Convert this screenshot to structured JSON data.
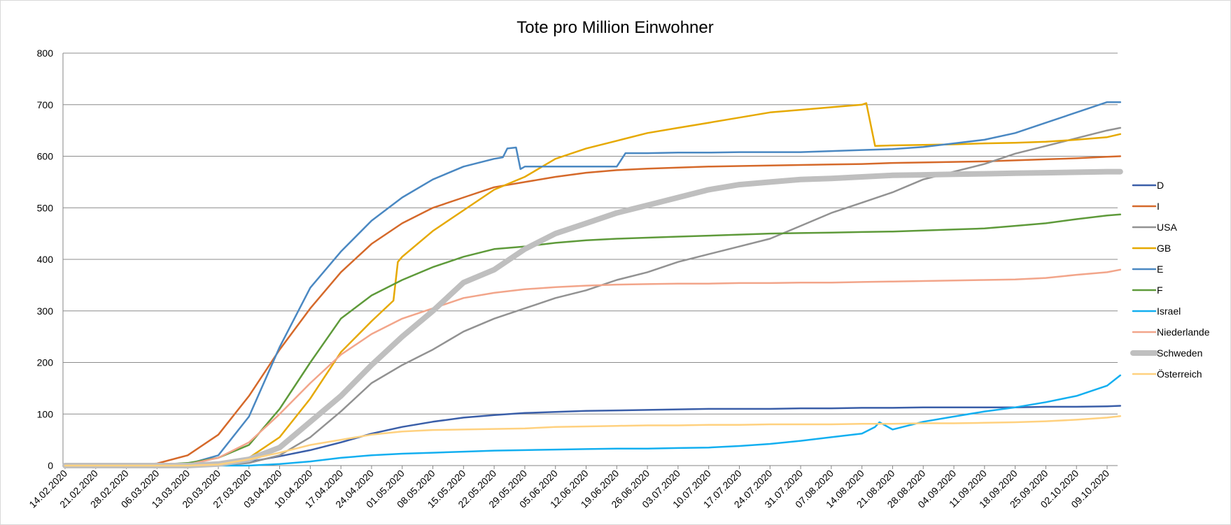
{
  "chart_data": {
    "type": "line",
    "title": "Tote pro Million Einwohner",
    "xlabel": "",
    "ylabel": "",
    "ylim": [
      0,
      800
    ],
    "yticks": [
      0,
      100,
      200,
      300,
      400,
      500,
      600,
      700,
      800
    ],
    "x_unit": "days since 14.02.2020",
    "xlim": [
      0,
      241
    ],
    "xtick_labels": [
      "14.02.2020",
      "21.02.2020",
      "28.02.2020",
      "06.03.2020",
      "13.03.2020",
      "20.03.2020",
      "27.03.2020",
      "03.04.2020",
      "10.04.2020",
      "17.04.2020",
      "24.04.2020",
      "01.05.2020",
      "08.05.2020",
      "15.05.2020",
      "22.05.2020",
      "29.05.2020",
      "05.06.2020",
      "12.06.2020",
      "19.06.2020",
      "26.06.2020",
      "03.07.2020",
      "10.07.2020",
      "17.07.2020",
      "24.07.2020",
      "31.07.2020",
      "07.08.2020",
      "14.08.2020",
      "21.08.2020",
      "28.08.2020",
      "04.09.2020",
      "11.09.2020",
      "18.09.2020",
      "25.09.2020",
      "02.10.2020",
      "09.10.2020"
    ],
    "grid": true,
    "legend_position": "right",
    "series": [
      {
        "name": "D",
        "color": "#3a5ea8",
        "width": 2.5,
        "weekly": [
          0,
          0,
          0,
          0,
          0,
          2,
          7,
          18,
          30,
          45,
          62,
          75,
          85,
          93,
          98,
          102,
          104,
          106,
          107,
          108,
          109,
          110,
          110,
          110,
          111,
          111,
          112,
          112,
          113,
          113,
          113,
          113,
          114,
          114,
          115,
          116
        ]
      },
      {
        "name": "I",
        "color": "#d5692a",
        "width": 2.5,
        "weekly": [
          0,
          0,
          0,
          4,
          20,
          60,
          135,
          225,
          305,
          375,
          430,
          470,
          500,
          520,
          540,
          550,
          560,
          568,
          573,
          576,
          578,
          580,
          581,
          582,
          583,
          584,
          585,
          587,
          588,
          589,
          590,
          592,
          594,
          596,
          599,
          600
        ]
      },
      {
        "name": "USA",
        "color": "#929292",
        "width": 2.5,
        "weekly": [
          0,
          0,
          0,
          0,
          0,
          0,
          5,
          20,
          55,
          105,
          160,
          195,
          225,
          260,
          285,
          305,
          325,
          340,
          360,
          375,
          395,
          410,
          425,
          440,
          465,
          490,
          510,
          530,
          555,
          570,
          585,
          605,
          620,
          635,
          650,
          655
        ]
      },
      {
        "name": "GB",
        "color": "#e6a900",
        "width": 2.5,
        "weekly": [
          0,
          0,
          0,
          0,
          0,
          3,
          15,
          55,
          130,
          220,
          280,
          405,
          455,
          495,
          535,
          560,
          595,
          615,
          630,
          645,
          655,
          665,
          675,
          685,
          690,
          695,
          700,
          621,
          622,
          623,
          625,
          626,
          628,
          632,
          637,
          643,
          645
        ],
        "extra": [
          [
            75,
            320
          ],
          [
            76,
            395
          ],
          [
            183,
            703
          ],
          [
            185,
            620
          ]
        ]
      },
      {
        "name": "E",
        "color": "#4a88c2",
        "width": 2.5,
        "weekly": [
          0,
          0,
          0,
          0,
          3,
          20,
          95,
          230,
          345,
          415,
          475,
          520,
          555,
          580,
          595,
          580,
          580,
          580,
          580,
          606,
          607,
          607,
          608,
          608,
          608,
          610,
          612,
          614,
          618,
          625,
          632,
          645,
          665,
          685,
          705,
          705
        ],
        "extra": [
          [
            100,
            598
          ],
          [
            101,
            615
          ],
          [
            103,
            617
          ],
          [
            104,
            575
          ],
          [
            105,
            580
          ],
          [
            126,
            580
          ],
          [
            128,
            606
          ]
        ]
      },
      {
        "name": "F",
        "color": "#5e9a3a",
        "width": 2.5,
        "weekly": [
          0,
          0,
          0,
          2,
          5,
          15,
          40,
          110,
          200,
          285,
          330,
          360,
          385,
          405,
          420,
          425,
          432,
          437,
          440,
          442,
          444,
          446,
          448,
          450,
          451,
          452,
          453,
          454,
          456,
          458,
          460,
          465,
          470,
          478,
          485,
          487
        ]
      },
      {
        "name": "Israel",
        "color": "#13aff0",
        "width": 2.5,
        "weekly": [
          0,
          0,
          0,
          0,
          0,
          0,
          0,
          3,
          8,
          15,
          20,
          23,
          25,
          27,
          29,
          30,
          31,
          32,
          33,
          33,
          34,
          35,
          38,
          42,
          48,
          55,
          62,
          70,
          85,
          95,
          105,
          113,
          123,
          135,
          155,
          175,
          200,
          215
        ],
        "extra": [
          [
            185,
            75
          ],
          [
            186,
            84
          ]
        ]
      },
      {
        "name": "Niederlande",
        "color": "#f2a58a",
        "width": 2.5,
        "weekly": [
          0,
          0,
          0,
          0,
          2,
          15,
          45,
          100,
          160,
          215,
          255,
          285,
          305,
          325,
          335,
          342,
          346,
          349,
          351,
          352,
          353,
          353,
          354,
          354,
          355,
          355,
          356,
          357,
          358,
          359,
          360,
          361,
          364,
          370,
          375,
          380
        ]
      },
      {
        "name": "Schweden",
        "color": "#bfbfbf",
        "width": 8,
        "weekly": [
          0,
          0,
          0,
          0,
          0,
          3,
          12,
          35,
          85,
          135,
          195,
          250,
          300,
          355,
          380,
          420,
          450,
          470,
          490,
          505,
          520,
          535,
          545,
          550,
          555,
          557,
          560,
          563,
          564,
          565,
          566,
          567,
          568,
          569,
          570,
          570
        ]
      },
      {
        "name": "Österreich",
        "color": "#ffd17f",
        "width": 2.5,
        "weekly": [
          0,
          0,
          0,
          0,
          0,
          2,
          12,
          25,
          40,
          50,
          60,
          66,
          69,
          70,
          71,
          72,
          75,
          76,
          77,
          78,
          78,
          79,
          79,
          80,
          80,
          80,
          81,
          81,
          82,
          82,
          83,
          84,
          86,
          89,
          93,
          96
        ]
      }
    ]
  }
}
